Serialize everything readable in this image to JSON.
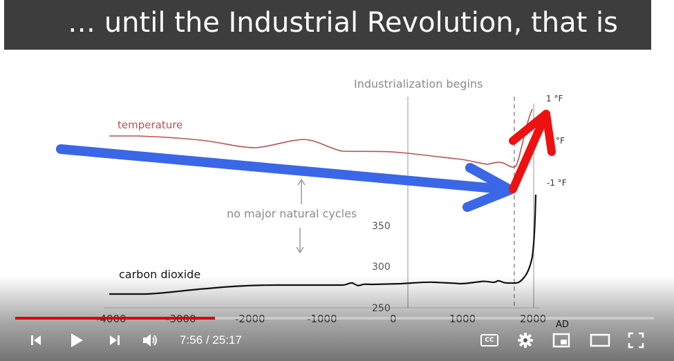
{
  "slide": {
    "title": "… until the Industrial Revolution, that is",
    "annotations": {
      "industrialization": "Industrialization begins",
      "temperature": "temperature",
      "carbon_dioxide": "carbon dioxide",
      "no_cycles": "no major natural cycles"
    },
    "temp_labels": [
      "1 °F",
      "°F",
      "-1 °F"
    ],
    "co2_labels": [
      "350",
      "300",
      "250"
    ],
    "x_labels": [
      "-4000",
      "-3000",
      "-2000",
      "-1000",
      "0",
      "1000",
      "2000"
    ],
    "x_unit": "AD",
    "colors": {
      "temperature": "#c0504d",
      "co2": "#111111",
      "blue_arrow": "#3a66e8",
      "red_arrow": "#ee1111"
    }
  },
  "player": {
    "current_time": "7:56",
    "duration": "25:17",
    "time_separator": " / ",
    "progress_fraction": 0.313,
    "buttons": {
      "previous": "skip-previous-icon",
      "play": "play-icon",
      "next": "skip-next-icon",
      "volume": "volume-icon",
      "captions": "CC",
      "settings": "gear-icon",
      "miniplayer": "miniplayer-icon",
      "theater": "theater-mode-icon",
      "fullscreen": "fullscreen-icon"
    },
    "colors": {
      "progress": "#e00000"
    }
  }
}
